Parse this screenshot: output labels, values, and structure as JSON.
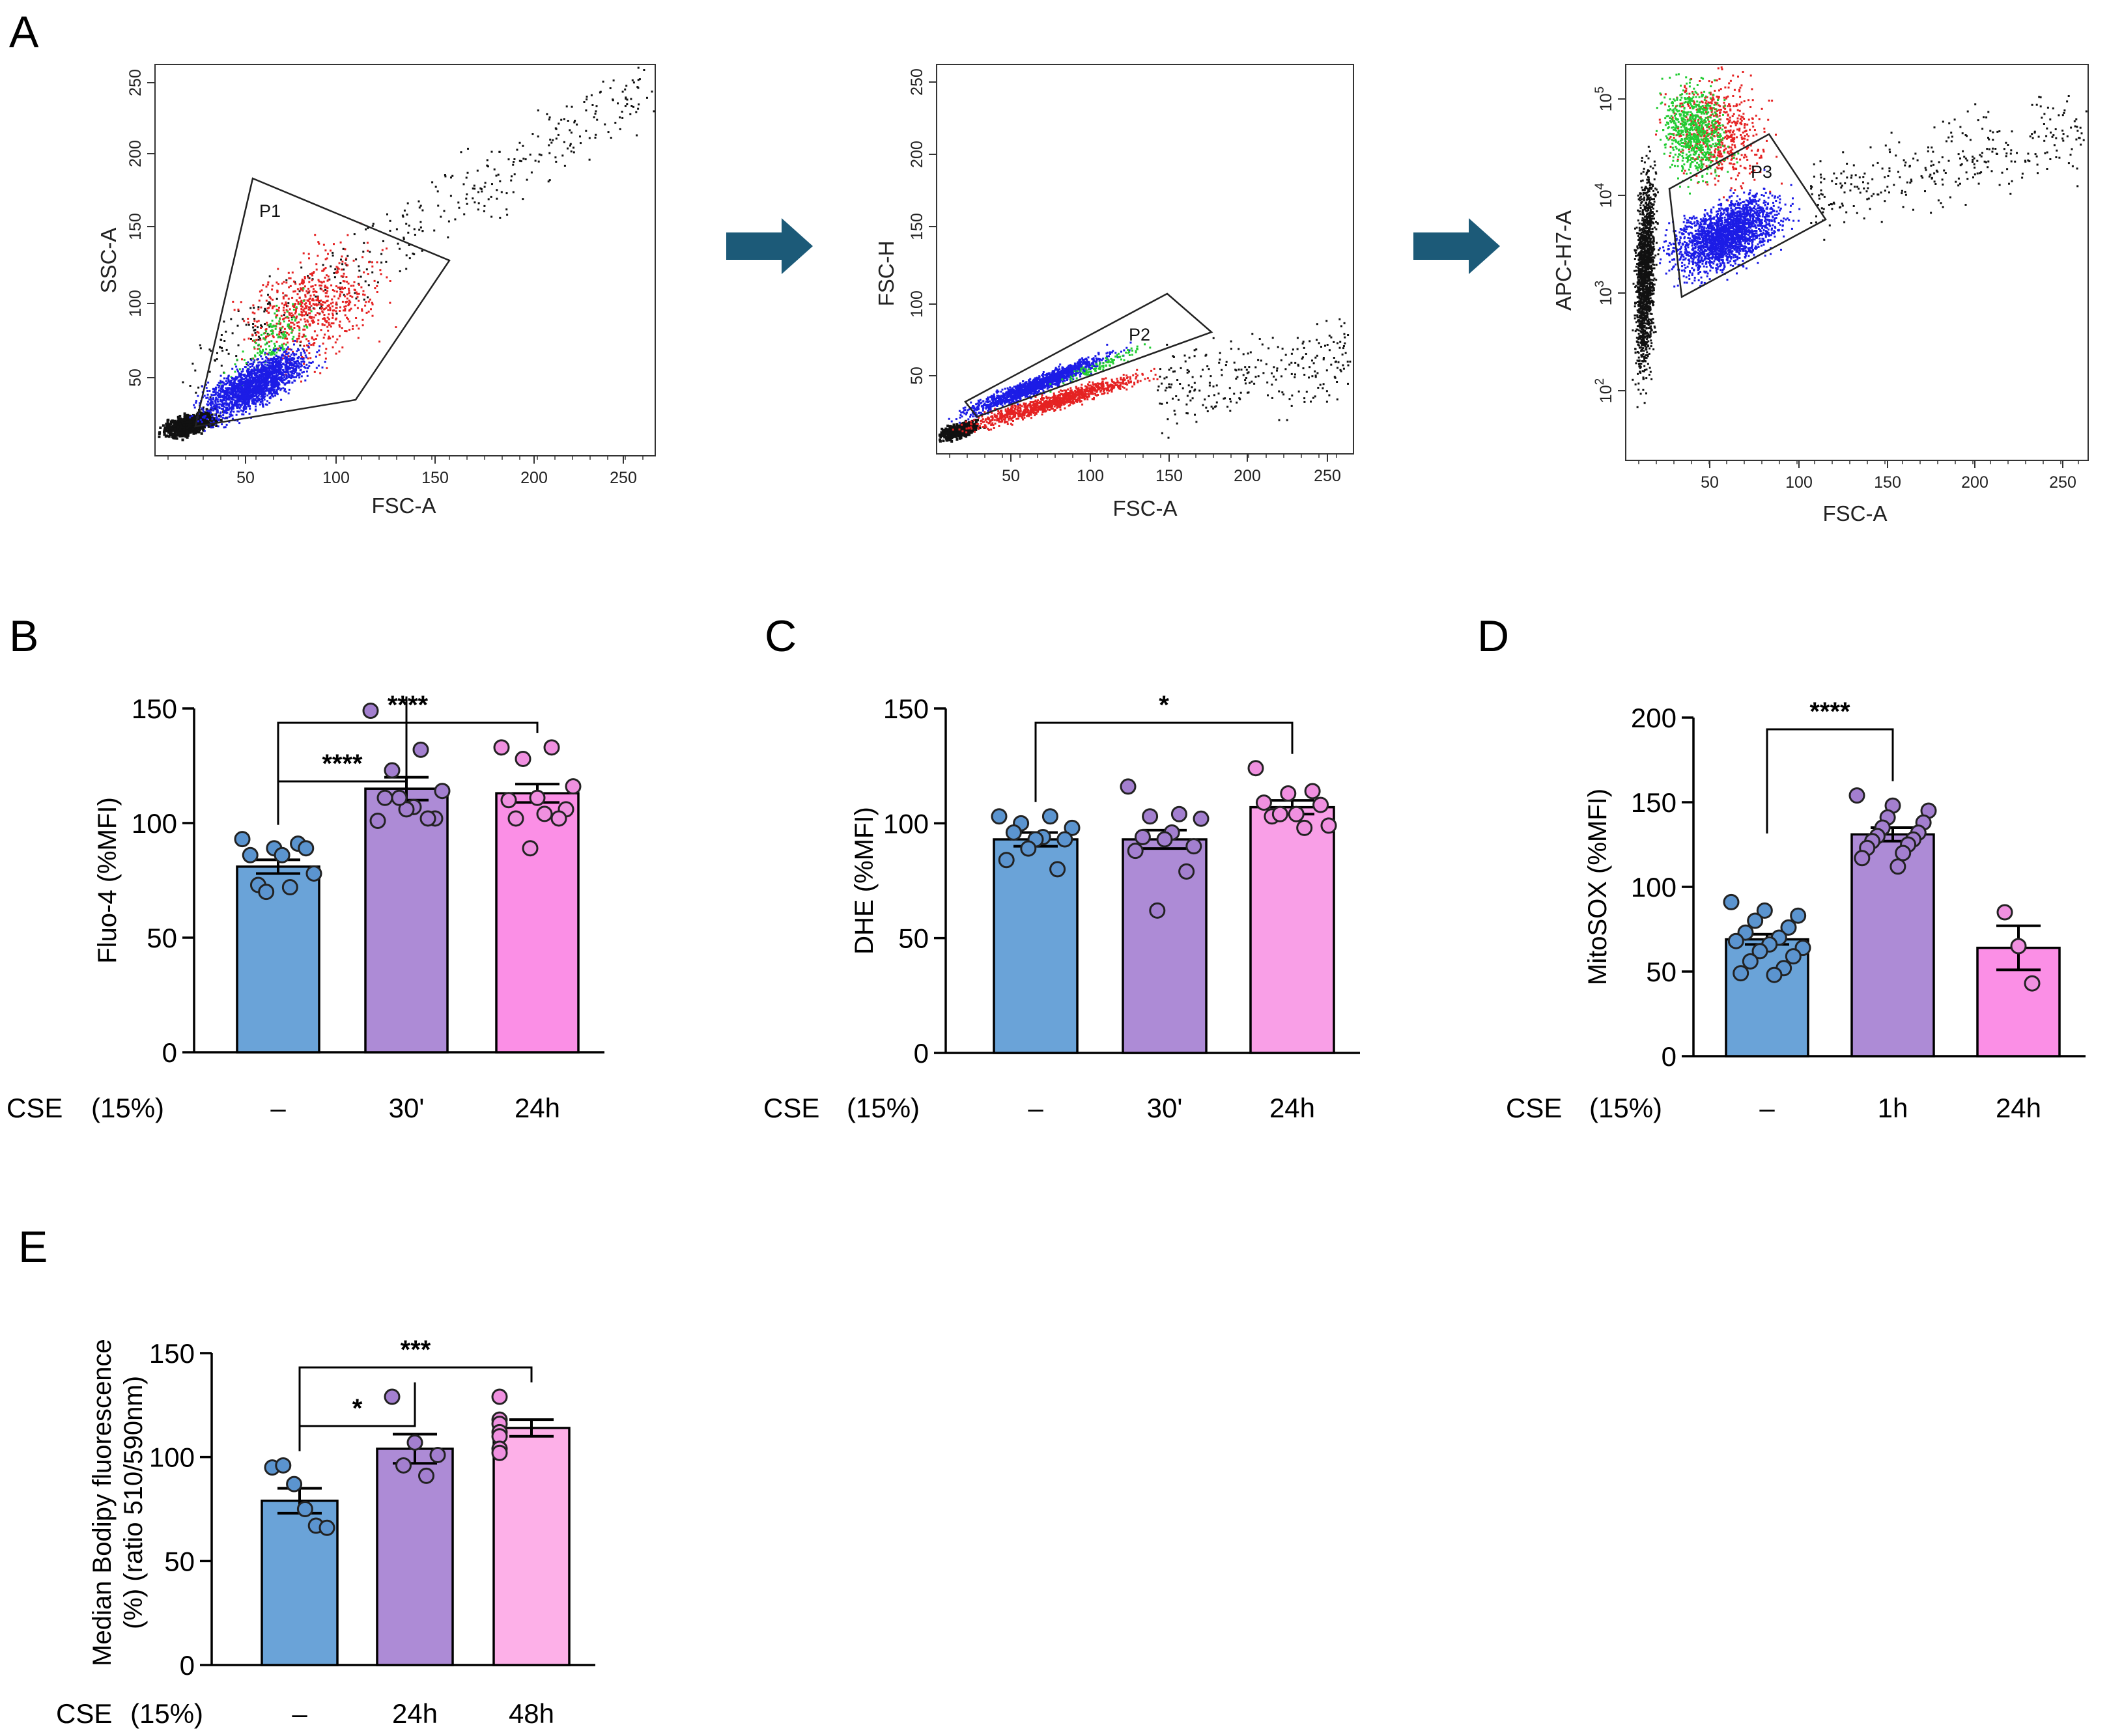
{
  "panels": {
    "A": "A",
    "B": "B",
    "C": "C",
    "D": "D",
    "E": "E"
  },
  "colors": {
    "control": "#6aa3d8",
    "mid": "#ad8bd6",
    "late_B": "#fb8fe6",
    "late_C": "#f99fe7",
    "late_E": "#fdb0e8",
    "dot_control": "#5b94cf",
    "dot_mid": "#a37fcf",
    "dot_late": "#f090e0",
    "arrow": "#1c5a78",
    "events_black": "#111111",
    "events_blue": "#1c1ce6",
    "events_red": "#e52222",
    "events_green": "#22cc33"
  },
  "flow": {
    "p1": {
      "xlabel": "FSC-A",
      "ylabel": "SSC-A",
      "gate": "P1",
      "xticks": [
        "50",
        "100",
        "150",
        "200",
        "250"
      ],
      "yticks": [
        "50",
        "100",
        "150",
        "200",
        "250"
      ]
    },
    "p2": {
      "xlabel": "FSC-A",
      "ylabel": "FSC-H",
      "gate": "P2",
      "xticks": [
        "50",
        "100",
        "150",
        "200",
        "250"
      ],
      "yticks": [
        "50",
        "100",
        "150",
        "200",
        "250"
      ]
    },
    "p3": {
      "xlabel": "FSC-A",
      "ylabel": "APC-H7-A",
      "gate": "P3",
      "xticks": [
        "50",
        "100",
        "150",
        "200",
        "250"
      ],
      "yticks": [
        "10",
        "10",
        "10",
        "10"
      ],
      "yexp": [
        "2",
        "3",
        "4",
        "5"
      ]
    }
  },
  "chart_data": [
    {
      "id": "B",
      "type": "bar",
      "ylabel": "Fluo-4 (%MFI)",
      "ylim": [
        0,
        150
      ],
      "yticks": [
        0,
        50,
        100,
        150
      ],
      "treatment_label": "CSE",
      "treatment_dose": "(15%)",
      "categories": [
        "–",
        "30'",
        "24h"
      ],
      "values": [
        81,
        115,
        113
      ],
      "sem": [
        3,
        5,
        4
      ],
      "points": [
        [
          93,
          91,
          89,
          86,
          89,
          86,
          73,
          78,
          72,
          70
        ],
        [
          149,
          132,
          123,
          114,
          107,
          111,
          102,
          106,
          101,
          102,
          111
        ],
        [
          133,
          133,
          128,
          116,
          104,
          102,
          106,
          111,
          110,
          102,
          89
        ]
      ],
      "comparisons": [
        {
          "from": 0,
          "to": 1,
          "label": "****"
        },
        {
          "from": 0,
          "to": 2,
          "label": "****"
        }
      ]
    },
    {
      "id": "C",
      "type": "bar",
      "ylabel": "DHE (%MFI)",
      "ylim": [
        0,
        150
      ],
      "yticks": [
        0,
        50,
        100,
        150
      ],
      "treatment_label": "CSE",
      "treatment_dose": "(15%)",
      "categories": [
        "–",
        "30'",
        "24h"
      ],
      "values": [
        93,
        93,
        107
      ],
      "sem": [
        3,
        4,
        3
      ],
      "points": [
        [
          103,
          103,
          100,
          98,
          94,
          96,
          93,
          93,
          84,
          80,
          89
        ],
        [
          116,
          104,
          103,
          102,
          96,
          94,
          90,
          93,
          88,
          79,
          62
        ],
        [
          124,
          114,
          113,
          109,
          108,
          104,
          103,
          99,
          98,
          104
        ]
      ],
      "comparisons": [
        {
          "from": 0,
          "to": 2,
          "label": "*"
        }
      ]
    },
    {
      "id": "D",
      "type": "bar",
      "ylabel": "MitoSOX (%MFI)",
      "ylim": [
        0,
        200
      ],
      "yticks": [
        0,
        50,
        100,
        150,
        200
      ],
      "treatment_label": "CSE",
      "treatment_dose": "(15%)",
      "categories": [
        "–",
        "1h",
        "24h"
      ],
      "values": [
        69,
        131,
        64
      ],
      "sem": [
        3,
        4,
        13
      ],
      "points": [
        [
          91,
          86,
          83,
          80,
          76,
          73,
          70,
          68,
          66,
          64,
          62,
          59,
          56,
          52,
          49,
          48
        ],
        [
          154,
          148,
          145,
          141,
          138,
          135,
          132,
          130,
          128,
          127,
          125,
          123,
          120,
          117,
          112
        ],
        [
          85,
          65,
          43
        ]
      ],
      "comparisons": [
        {
          "from": 0,
          "to": 1,
          "label": "****"
        }
      ]
    },
    {
      "id": "E",
      "type": "bar",
      "ylabel": "Median Bodipy fluorescence",
      "ylabel2": "(%) (ratio 510/590nm)",
      "ylim": [
        0,
        150
      ],
      "yticks": [
        0,
        50,
        100,
        150
      ],
      "treatment_label": "CSE",
      "treatment_dose": "(15%)",
      "categories": [
        "–",
        "24h",
        "48h"
      ],
      "values": [
        79,
        104,
        114
      ],
      "sem": [
        6,
        7,
        4
      ],
      "points": [
        [
          95,
          96,
          87,
          75,
          67,
          66
        ],
        [
          129,
          107,
          101,
          96,
          91
        ],
        [
          129,
          118,
          116,
          112,
          110,
          104,
          102
        ]
      ],
      "comparisons": [
        {
          "from": 0,
          "to": 1,
          "label": "*"
        },
        {
          "from": 0,
          "to": 2,
          "label": "***"
        }
      ]
    }
  ]
}
